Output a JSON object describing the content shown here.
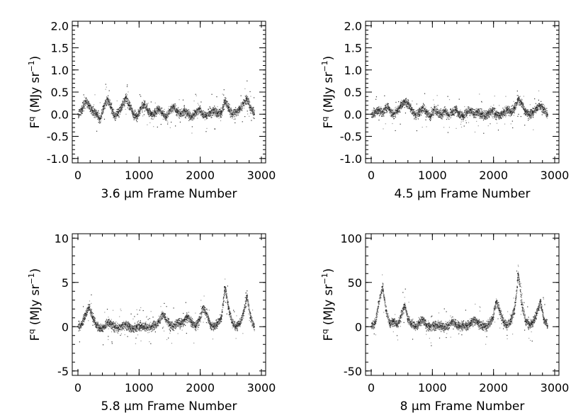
{
  "chart_data": [
    {
      "type": "scatter",
      "xlabel": "3.6 μm Frame Number",
      "ylabel": "F^q (MJy sr^-1)",
      "xlim": [
        0,
        3000
      ],
      "ylim": [
        -1.1,
        2.1
      ],
      "xticks": [
        0,
        1000,
        2000,
        3000
      ],
      "yticks": [
        -1.0,
        -0.5,
        0.0,
        0.5,
        1.0,
        1.5,
        2.0
      ],
      "ytick_labels": [
        "-1.0",
        "-0.5",
        "0.0",
        "0.5",
        "1.0",
        "1.5",
        "2.0"
      ],
      "series": [
        {
          "x": [
            0,
            60,
            120,
            180,
            240,
            300,
            360,
            420,
            480,
            540,
            600,
            660,
            720,
            780,
            840,
            900,
            960,
            1020,
            1080,
            1140,
            1200,
            1260,
            1320,
            1380,
            1440,
            1500,
            1560,
            1620,
            1680,
            1740,
            1800,
            1860,
            1920,
            1980,
            2040,
            2100,
            2160,
            2220,
            2280,
            2340,
            2400,
            2460,
            2520,
            2580,
            2640,
            2700,
            2760,
            2820,
            2880
          ],
          "y": [
            0.0,
            0.12,
            0.3,
            0.2,
            0.08,
            0.0,
            -0.1,
            0.18,
            0.35,
            0.15,
            -0.05,
            0.05,
            0.2,
            0.38,
            0.2,
            0.0,
            -0.05,
            0.15,
            0.22,
            0.08,
            0.0,
            0.05,
            0.12,
            0.02,
            -0.05,
            0.1,
            0.18,
            0.05,
            0.02,
            0.08,
            0.0,
            -0.05,
            0.05,
            0.12,
            0.0,
            -0.03,
            0.05,
            0.1,
            0.02,
            0.05,
            0.3,
            0.15,
            0.0,
            0.05,
            0.12,
            0.25,
            0.35,
            0.15,
            0.0
          ]
        }
      ]
    },
    {
      "type": "scatter",
      "xlabel": "4.5 μm Frame Number",
      "ylabel": "F^q (MJy sr^-1)",
      "xlim": [
        0,
        3000
      ],
      "ylim": [
        -1.1,
        2.1
      ],
      "xticks": [
        0,
        1000,
        2000,
        3000
      ],
      "yticks": [
        -1.0,
        -0.5,
        0.0,
        0.5,
        1.0,
        1.5,
        2.0
      ],
      "ytick_labels": [
        "-1.0",
        "-0.5",
        "0.0",
        "0.5",
        "1.0",
        "1.5",
        "2.0"
      ],
      "series": [
        {
          "x": [
            0,
            60,
            120,
            180,
            240,
            300,
            360,
            420,
            480,
            540,
            600,
            660,
            720,
            780,
            840,
            900,
            960,
            1020,
            1080,
            1140,
            1200,
            1260,
            1320,
            1380,
            1440,
            1500,
            1560,
            1620,
            1680,
            1740,
            1800,
            1860,
            1920,
            1980,
            2040,
            2100,
            2160,
            2220,
            2280,
            2340,
            2400,
            2460,
            2520,
            2580,
            2640,
            2700,
            2760,
            2820,
            2880
          ],
          "y": [
            0.0,
            0.05,
            0.1,
            0.05,
            0.15,
            0.1,
            0.0,
            0.08,
            0.2,
            0.3,
            0.25,
            0.1,
            0.0,
            0.05,
            0.15,
            0.05,
            -0.05,
            0.1,
            0.05,
            0.0,
            0.08,
            -0.02,
            0.05,
            0.1,
            0.0,
            -0.05,
            0.05,
            0.1,
            0.0,
            0.05,
            0.0,
            -0.05,
            0.05,
            0.08,
            0.0,
            -0.03,
            0.05,
            0.1,
            0.05,
            0.15,
            0.35,
            0.25,
            0.05,
            0.0,
            0.05,
            0.15,
            0.2,
            0.1,
            0.0
          ]
        }
      ]
    },
    {
      "type": "scatter",
      "xlabel": "5.8 μm Frame Number",
      "ylabel": "F^q (MJy sr^-1)",
      "xlim": [
        0,
        3000
      ],
      "ylim": [
        -5.5,
        10.5
      ],
      "xticks": [
        0,
        1000,
        2000,
        3000
      ],
      "yticks": [
        -5,
        0,
        5,
        10
      ],
      "ytick_labels": [
        "-5",
        "0",
        "5",
        "10"
      ],
      "series": [
        {
          "x": [
            0,
            60,
            120,
            180,
            240,
            300,
            360,
            420,
            480,
            540,
            600,
            660,
            720,
            780,
            840,
            900,
            960,
            1020,
            1080,
            1140,
            1200,
            1260,
            1320,
            1380,
            1440,
            1500,
            1560,
            1620,
            1680,
            1740,
            1800,
            1860,
            1920,
            1980,
            2040,
            2100,
            2160,
            2220,
            2280,
            2340,
            2400,
            2460,
            2520,
            2580,
            2640,
            2700,
            2760,
            2820,
            2880
          ],
          "y": [
            0.0,
            0.3,
            1.5,
            2.2,
            1.0,
            0.2,
            -0.2,
            0.0,
            0.5,
            0.3,
            0.0,
            -0.1,
            0.2,
            0.3,
            0.0,
            -0.2,
            0.0,
            0.1,
            0.0,
            -0.1,
            0.0,
            0.2,
            0.6,
            1.5,
            0.8,
            0.2,
            0.0,
            0.5,
            0.3,
            0.8,
            1.2,
            0.5,
            0.0,
            0.8,
            2.2,
            1.5,
            0.3,
            0.0,
            0.5,
            1.0,
            4.5,
            2.0,
            0.5,
            0.0,
            0.3,
            1.5,
            3.5,
            1.0,
            0.0
          ]
        }
      ]
    },
    {
      "type": "scatter",
      "xlabel": "8 μm Frame Number",
      "ylabel": "F^q (MJy sr^-1)",
      "xlim": [
        0,
        3000
      ],
      "ylim": [
        -55,
        105
      ],
      "xticks": [
        0,
        1000,
        2000,
        3000
      ],
      "yticks": [
        -50,
        0,
        50,
        100
      ],
      "ytick_labels": [
        "-50",
        "0",
        "50",
        "100"
      ],
      "series": [
        {
          "x": [
            0,
            60,
            120,
            180,
            240,
            300,
            360,
            420,
            480,
            540,
            600,
            660,
            720,
            780,
            840,
            900,
            960,
            1020,
            1080,
            1140,
            1200,
            1260,
            1320,
            1380,
            1440,
            1500,
            1560,
            1620,
            1680,
            1740,
            1800,
            1860,
            1920,
            1980,
            2040,
            2100,
            2160,
            2220,
            2280,
            2340,
            2400,
            2460,
            2520,
            2580,
            2640,
            2700,
            2760,
            2820,
            2880
          ],
          "y": [
            0,
            5,
            28,
            45,
            18,
            4,
            6,
            2,
            12,
            25,
            8,
            3,
            0,
            5,
            8,
            2,
            0,
            1,
            2,
            1,
            0,
            2,
            6,
            3,
            1,
            2,
            1,
            4,
            8,
            5,
            2,
            0,
            3,
            10,
            28,
            18,
            5,
            2,
            8,
            20,
            60,
            25,
            6,
            3,
            5,
            15,
            28,
            8,
            1
          ]
        }
      ]
    }
  ]
}
